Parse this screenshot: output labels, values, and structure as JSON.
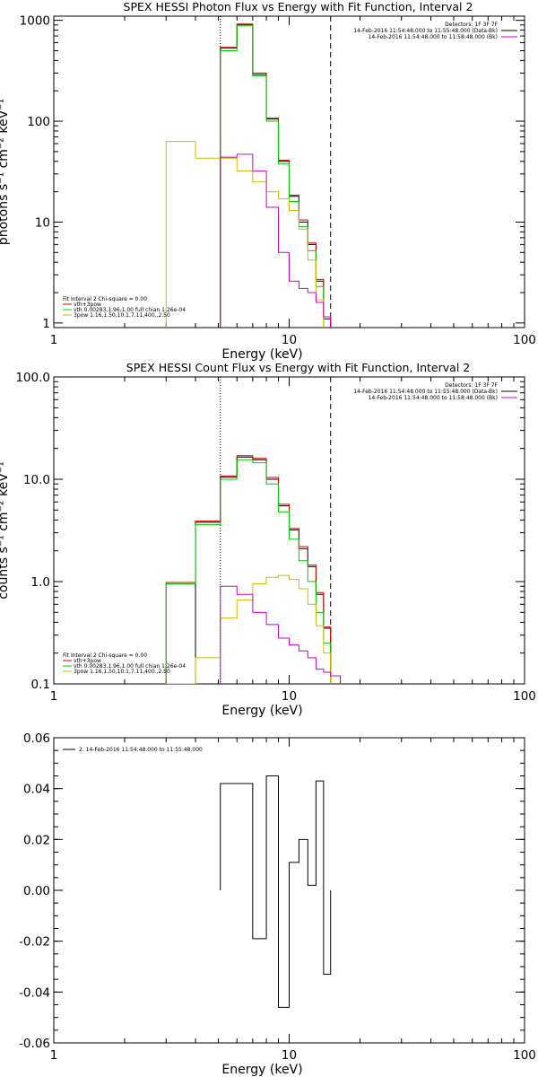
{
  "chart_data": [
    {
      "type": "line",
      "title": "SPEX HESSI Photon Flux vs Energy with Fit Function, Interval 2",
      "xlabel": "Energy (keV)",
      "ylabel": "photons s⁻¹ cm⁻² keV⁻¹",
      "xscale": "log",
      "yscale": "log",
      "xlim": [
        1,
        100
      ],
      "ylim": [
        0.9,
        1100
      ],
      "x_ticklabels": [
        "1",
        "10",
        "100"
      ],
      "y_ticks": [
        1,
        10,
        100,
        1000
      ],
      "y_ticklabels": [
        "1",
        "10",
        "100",
        "1000"
      ],
      "header": [
        "Detectors: 1F 3F 7F",
        "14-Feb-2016 11:54:48.000 to 11:55:48.000 (Data-Bk)",
        "14-Feb-2016 11:54:48.000 to 11:58:48.000 (Bk)"
      ],
      "header_colors": [
        "#000000",
        "#000000",
        "#cc00cc"
      ],
      "legend": [
        "Fit Interval 2   Chi-square = 0.00",
        "vth+3pow",
        "vth 0.00283,1.96,1.00  full chian 1.26e-04",
        "3pow 1.16,1.50,10.1,7.11,400.,2.50"
      ],
      "legend_colors": [
        "#000000",
        "#cc0000",
        "#00cc00",
        "#ccbb00"
      ],
      "vlines": [
        {
          "x": 5.1,
          "style": "dotted",
          "color": "#000000"
        },
        {
          "x": 15.0,
          "style": "dashed",
          "color": "#000000"
        }
      ],
      "bin_edges": [
        3.0,
        4.0,
        5.1,
        6.0,
        7.0,
        8.0,
        9.0,
        10.0,
        11.0,
        12.0,
        13.0,
        14.0,
        15.0,
        16.5
      ],
      "series": [
        {
          "name": "Data-Bk",
          "color": "#000000",
          "values": [
            null,
            null,
            530,
            900,
            290,
            105,
            40,
            18,
            10,
            6.0,
            2.6,
            1.1,
            null
          ]
        },
        {
          "name": "vth+3pow",
          "color": "#cc0000",
          "values": [
            null,
            null,
            540,
            920,
            300,
            107,
            41,
            18.5,
            10.5,
            6.2,
            2.7,
            1.15,
            null
          ]
        },
        {
          "name": "vth",
          "color": "#00cc00",
          "values": [
            null,
            null,
            500,
            890,
            280,
            100,
            38,
            16,
            9,
            5.2,
            2.3,
            null,
            null
          ]
        },
        {
          "name": "3pow",
          "color": "#ccbb00",
          "values": [
            63,
            43,
            43,
            32,
            25,
            20,
            17,
            13,
            8.5,
            4.2,
            1.7,
            null,
            null
          ]
        },
        {
          "name": "Bk",
          "color": "#cc00cc",
          "values": [
            null,
            null,
            44,
            47,
            32,
            14,
            5.0,
            2.6,
            2.2,
            2.0,
            1.6,
            1.15,
            null
          ]
        }
      ]
    },
    {
      "type": "line",
      "title": "SPEX HESSI Count Flux vs Energy with Fit Function, Interval 2",
      "xlabel": "Energy (keV)",
      "ylabel": "counts s⁻¹ cm⁻² keV⁻¹",
      "xscale": "log",
      "yscale": "log",
      "xlim": [
        1,
        100
      ],
      "ylim": [
        0.1,
        100
      ],
      "x_ticklabels": [
        "1",
        "10",
        "100"
      ],
      "y_ticks": [
        0.1,
        1,
        10,
        100
      ],
      "y_ticklabels": [
        "0.1",
        "1.0",
        "10.0",
        "100.0"
      ],
      "header": [
        "Detectors: 1F 3F 7F",
        "14-Feb-2016 11:54:48.000 to 11:55:48.000 (Data-Bk)",
        "14-Feb-2016 11:54:48.000 to 11:58:48.000 (Bk)"
      ],
      "header_colors": [
        "#000000",
        "#000000",
        "#cc00cc"
      ],
      "legend": [
        "Fit Interval 2   Chi-square = 0.00",
        "vth+3pow",
        "vth 0.00283,1.96,1.00  full chian 1.26e-04",
        "3pow 1.16,1.50,10.1,7.11,400.,2.50"
      ],
      "legend_colors": [
        "#000000",
        "#cc0000",
        "#00cc00",
        "#ccbb00"
      ],
      "vlines": [
        {
          "x": 5.1,
          "style": "dotted",
          "color": "#000000"
        },
        {
          "x": 15.0,
          "style": "dashed",
          "color": "#000000"
        }
      ],
      "bin_edges": [
        3.0,
        4.0,
        5.1,
        6.0,
        7.0,
        8.0,
        9.0,
        10.0,
        11.0,
        12.0,
        13.0,
        14.0,
        15.0,
        16.5
      ],
      "series": [
        {
          "name": "Data-Bk",
          "color": "#000000",
          "values": [
            null,
            3.8,
            10.5,
            16.5,
            15.5,
            10.0,
            5.5,
            3.2,
            2.1,
            1.4,
            0.75,
            0.35,
            null
          ]
        },
        {
          "name": "vth+3pow",
          "color": "#cc0000",
          "values": [
            0.98,
            3.9,
            10.8,
            17.0,
            16.0,
            10.4,
            5.7,
            3.3,
            2.2,
            1.45,
            0.78,
            0.36,
            0.12
          ]
        },
        {
          "name": "vth",
          "color": "#00cc00",
          "values": [
            0.95,
            3.6,
            10.0,
            15.5,
            14.5,
            9.0,
            4.8,
            2.6,
            1.6,
            1.0,
            0.5,
            0.25,
            null
          ]
        },
        {
          "name": "3pow",
          "color": "#ccbb00",
          "values": [
            0.1,
            0.18,
            0.44,
            0.66,
            0.95,
            1.1,
            1.15,
            1.05,
            0.85,
            0.6,
            0.37,
            0.2,
            null
          ]
        },
        {
          "name": "Bk",
          "color": "#cc00cc",
          "values": [
            null,
            null,
            0.9,
            0.75,
            0.5,
            0.38,
            0.28,
            0.24,
            0.21,
            0.18,
            0.14,
            0.13,
            0.12
          ]
        }
      ]
    },
    {
      "type": "line",
      "title": "",
      "xlabel": "Energy (keV)",
      "ylabel": "",
      "xscale": "log",
      "yscale": "linear",
      "xlim": [
        1,
        100
      ],
      "ylim": [
        -0.06,
        0.06
      ],
      "x_ticklabels": [
        "1",
        "10",
        "100"
      ],
      "y_ticks": [
        -0.06,
        -0.04,
        -0.02,
        0.0,
        0.02,
        0.04,
        0.06
      ],
      "y_ticklabels": [
        "-0.06",
        "-0.04",
        "-0.02",
        "0.00",
        "0.02",
        "0.04",
        "0.06"
      ],
      "legend": [
        "2. 14-Feb-2016 11:54:48.000 to 11:55:48.000"
      ],
      "legend_colors": [
        "#000000"
      ],
      "bin_edges": [
        5.1,
        6.0,
        7.0,
        8.0,
        9.0,
        10.0,
        11.0,
        12.0,
        13.0,
        14.0,
        15.0
      ],
      "series": [
        {
          "name": "2. 14-Feb-2016 11:54:48.000 to 11:55:48.000",
          "color": "#000000",
          "values": [
            0.042,
            0.042,
            -0.019,
            0.045,
            -0.046,
            0.011,
            0.02,
            0.002,
            0.043,
            -0.033
          ]
        }
      ]
    }
  ]
}
